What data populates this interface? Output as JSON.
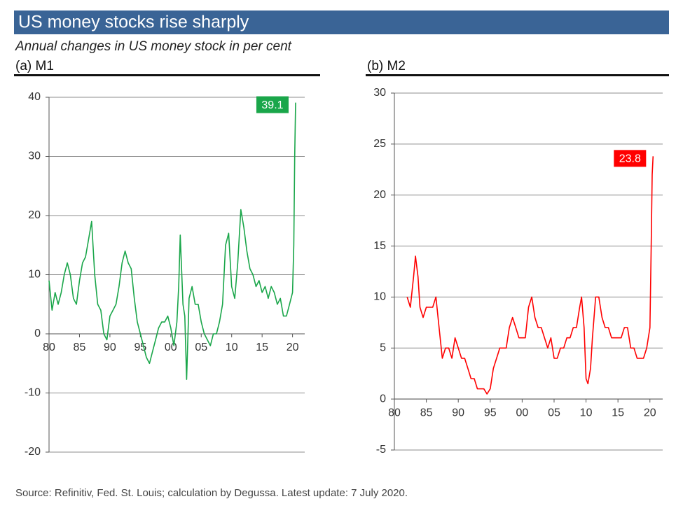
{
  "title": "US money stocks rise sharply",
  "subtitle": "Annual changes in US money stock in per cent",
  "source": "Source: Refinitiv, Fed. St. Louis; calculation by Degussa. Latest update: 7 July 2020.",
  "chart_data": [
    {
      "type": "line",
      "title": "(a) M1",
      "color": "#1aa64a",
      "grid": true,
      "x": [
        1980,
        1980.5,
        1981,
        1981.5,
        1982,
        1982.5,
        1983,
        1983.5,
        1984,
        1984.5,
        1985,
        1985.5,
        1986,
        1986.5,
        1987,
        1987.5,
        1988,
        1988.5,
        1989,
        1989.5,
        1990,
        1990.5,
        1991,
        1991.5,
        1992,
        1992.5,
        1993,
        1993.5,
        1994,
        1994.5,
        1995,
        1995.5,
        1996,
        1996.5,
        1997,
        1997.5,
        1998,
        1998.5,
        1999,
        1999.5,
        2000,
        2000.5,
        2001,
        2001.3,
        2001.55,
        2002,
        2002.3,
        2002.6,
        2003,
        2003.5,
        2004,
        2004.5,
        2005,
        2005.5,
        2006,
        2006.5,
        2007,
        2007.5,
        2008,
        2008.5,
        2009,
        2009.5,
        2010,
        2010.5,
        2011,
        2011.5,
        2012,
        2012.5,
        2013,
        2013.5,
        2014,
        2014.5,
        2015,
        2015.5,
        2016,
        2016.5,
        2017,
        2017.5,
        2018,
        2018.5,
        2019,
        2019.5,
        2020,
        2020.2,
        2020.35,
        2020.5
      ],
      "values": [
        9,
        4,
        7,
        5,
        7,
        10,
        12,
        10,
        6,
        5,
        9,
        12,
        13,
        16,
        19,
        10,
        5,
        4,
        0,
        -1,
        3,
        4,
        5,
        8,
        12,
        14,
        12,
        11,
        6,
        2,
        0,
        -2,
        -4,
        -5,
        -3,
        -1,
        1,
        2,
        2,
        3,
        1,
        -2,
        2,
        8,
        16.7,
        5,
        3,
        -7.7,
        6,
        8,
        5,
        5,
        2,
        0,
        -1,
        -2,
        0,
        0,
        2,
        5,
        15,
        17,
        8,
        6,
        12,
        21,
        18,
        14,
        11,
        10,
        8,
        9,
        7,
        8,
        6,
        8,
        7,
        5,
        6,
        3,
        3,
        5,
        7,
        15,
        30,
        39.1
      ],
      "xlim": [
        1980,
        2022
      ],
      "ylim": [
        -20,
        40
      ],
      "xticks": [
        {
          "value": 1980,
          "label": "80"
        },
        {
          "value": 1985,
          "label": "85"
        },
        {
          "value": 1990,
          "label": "90"
        },
        {
          "value": 1995,
          "label": "95"
        },
        {
          "value": 2000,
          "label": "00"
        },
        {
          "value": 2005,
          "label": "05"
        },
        {
          "value": 2010,
          "label": "10"
        },
        {
          "value": 2015,
          "label": "15"
        },
        {
          "value": 2020,
          "label": "20"
        }
      ],
      "yticks": [
        -20,
        -10,
        0,
        10,
        20,
        30,
        40
      ]
    },
    {
      "type": "line",
      "title": "(b) M2",
      "color": "#ff0000",
      "grid": true,
      "x": [
        1982,
        1982.5,
        1983,
        1983.3,
        1983.7,
        1984,
        1984.5,
        1985,
        1985.5,
        1986,
        1986.5,
        1987,
        1987.5,
        1988,
        1988.5,
        1989,
        1989.5,
        1990,
        1990.5,
        1991,
        1991.5,
        1992,
        1992.5,
        1993,
        1993.5,
        1994,
        1994.5,
        1995,
        1995.5,
        1996,
        1996.5,
        1997,
        1997.5,
        1998,
        1998.5,
        1999,
        1999.5,
        2000,
        2000.5,
        2001,
        2001.5,
        2002,
        2002.5,
        2003,
        2003.5,
        2004,
        2004.5,
        2005,
        2005.5,
        2006,
        2006.5,
        2007,
        2007.5,
        2008,
        2008.5,
        2009,
        2009.3,
        2009.7,
        2010,
        2010.3,
        2010.7,
        2011,
        2011.5,
        2012,
        2012.5,
        2013,
        2013.5,
        2014,
        2014.5,
        2015,
        2015.5,
        2016,
        2016.5,
        2017,
        2017.5,
        2018,
        2018.5,
        2019,
        2019.5,
        2020,
        2020.2,
        2020.35,
        2020.5
      ],
      "values": [
        10,
        9,
        12,
        14,
        12,
        9,
        8,
        9,
        9,
        9,
        10,
        7,
        4,
        5,
        5,
        4,
        6,
        5,
        4,
        4,
        3,
        2,
        2,
        1,
        1,
        1,
        0.5,
        1,
        3,
        4,
        5,
        5,
        5,
        7,
        8,
        7,
        6,
        6,
        6,
        9,
        10,
        8,
        7,
        7,
        6,
        5,
        6,
        4,
        4,
        5,
        5,
        6,
        6,
        7,
        7,
        9,
        10,
        7,
        2,
        1.5,
        3,
        6,
        10,
        10,
        8,
        7,
        7,
        6,
        6,
        6,
        6,
        7,
        7,
        5,
        5,
        4,
        4,
        4,
        5,
        7,
        15,
        22,
        23.8
      ],
      "xlim": [
        1980,
        2022
      ],
      "ylim": [
        -5,
        30
      ],
      "xticks": [
        {
          "value": 1980,
          "label": "80"
        },
        {
          "value": 1985,
          "label": "85"
        },
        {
          "value": 1990,
          "label": "90"
        },
        {
          "value": 1995,
          "label": "95"
        },
        {
          "value": 2000,
          "label": "00"
        },
        {
          "value": 2005,
          "label": "05"
        },
        {
          "value": 2010,
          "label": "10"
        },
        {
          "value": 2015,
          "label": "15"
        },
        {
          "value": 2020,
          "label": "20"
        }
      ],
      "yticks": [
        -5,
        0,
        5,
        10,
        15,
        20,
        25,
        30
      ]
    }
  ]
}
